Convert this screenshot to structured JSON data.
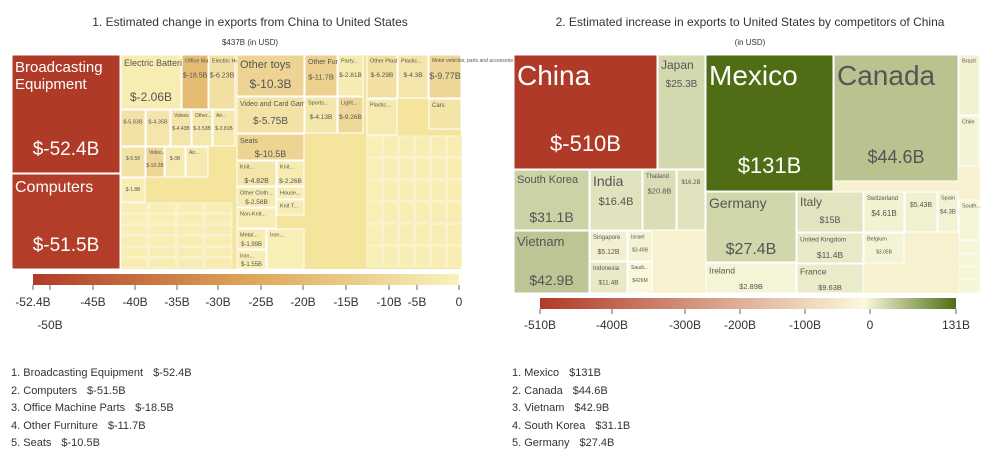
{
  "chart_data": [
    {
      "type": "treemap",
      "title": "1. Estimated change in exports from China to United States",
      "subtitle": "$437B (in USD)",
      "colorscale": {
        "min_color": "#b03a28",
        "mid_color": "#dca557",
        "max_color": "#f9f3bb",
        "ticks": [
          "-52.4B",
          "-50B",
          "-45B",
          "-40B",
          "-35B",
          "-30B",
          "-25B",
          "-20B",
          "-15B",
          "-10B",
          "-5B",
          "0"
        ]
      },
      "items": [
        {
          "label": "Broadcasting Equipment",
          "value": "$-52.4B",
          "v": -52.4
        },
        {
          "label": "Computers",
          "value": "$-51.5B",
          "v": -51.5
        },
        {
          "label": "Electric Batteries",
          "value": "$-2.06B",
          "v": -2.06
        },
        {
          "label": "Office Machine Parts",
          "value": "$-18.5B",
          "v": -18.5
        },
        {
          "label": "Electric Heaters",
          "value": "$-6.23B",
          "v": -6.23
        },
        {
          "label": "Other toys",
          "value": "$-10.3B",
          "v": -10.3
        },
        {
          "label": "Other Furniture",
          "value": "$-11.7B",
          "v": -11.7
        },
        {
          "label": "Video and Card Games",
          "value": "$-5.75B",
          "v": -5.75
        },
        {
          "label": "Seats",
          "value": "$-10.5B",
          "v": -10.5
        },
        {
          "label": "Knit...",
          "value": "$-4.82B",
          "v": -4.82
        },
        {
          "label": "Knit...",
          "value": "$-2.26B",
          "v": -2.26
        },
        {
          "label": "Other Cloth...",
          "value": "$-2.58B",
          "v": -2.58
        },
        {
          "label": "Non-Knit...",
          "value": "",
          "v": -2.2
        },
        {
          "label": "House...",
          "value": "",
          "v": -2.0
        },
        {
          "label": "Knit T...",
          "value": "",
          "v": -1.9
        },
        {
          "label": "Metal...",
          "value": "$-1.99B",
          "v": -1.99
        },
        {
          "label": "Iron...",
          "value": "$-1.55B",
          "v": -1.55
        },
        {
          "label": "Iron...",
          "value": "",
          "v": -1.5
        },
        {
          "label": "Party...",
          "value": "$-2.81B",
          "v": -2.81
        },
        {
          "label": "Sports...",
          "value": "$-4.13B",
          "v": -4.13
        },
        {
          "label": "Light...",
          "value": "$-9.26B",
          "v": -9.26
        },
        {
          "label": "",
          "value": "$-5.83B",
          "v": -5.83
        },
        {
          "label": "",
          "value": "$-4.35B",
          "v": -4.35
        },
        {
          "label": "Valves",
          "value": "$-4.43B",
          "v": -4.43
        },
        {
          "label": "Other...",
          "value": "$-3.53B",
          "v": -3.53
        },
        {
          "label": "Air...",
          "value": "$-3.81B",
          "v": -3.81
        },
        {
          "label": "Video...",
          "value": "$-10.2B",
          "v": -10.2
        },
        {
          "label": "",
          "value": "$-5.58",
          "v": -5.58
        },
        {
          "label": "",
          "value": "$-3B",
          "v": -3.0
        },
        {
          "label": "",
          "value": "$-1.8B",
          "v": -1.8
        },
        {
          "label": "Air...",
          "value": "",
          "v": -3.0
        },
        {
          "label": "Other Plastic...",
          "value": "$-6.29B",
          "v": -6.29
        },
        {
          "label": "Plastic...",
          "value": "$-4.3B",
          "v": -4.3
        },
        {
          "label": "Motor vehicles, parts and accessories (8701...",
          "value": "$-9.77B",
          "v": -9.77
        },
        {
          "label": "Cars",
          "value": "",
          "v": -5.0
        },
        {
          "label": "Plastic...",
          "value": "",
          "v": -3.0
        }
      ],
      "top_list": [
        {
          "rank": "1.",
          "name": "Broadcasting Equipment",
          "value": "$-52.4B"
        },
        {
          "rank": "2.",
          "name": "Computers",
          "value": "$-51.5B"
        },
        {
          "rank": "3.",
          "name": "Office Machine Parts",
          "value": "$-18.5B"
        },
        {
          "rank": "4.",
          "name": "Other Furniture",
          "value": "$-11.7B"
        },
        {
          "rank": "5.",
          "name": "Seats",
          "value": "$-10.5B"
        }
      ]
    },
    {
      "type": "treemap",
      "title": "2. Estimated increase in exports to United States by competitors of China",
      "subtitle": "(in USD)",
      "colorscale": {
        "min_color": "#b03a28",
        "mid_color": "#fbf8dc",
        "max_color": "#4e6d14",
        "ticks": [
          "-510B",
          "-400B",
          "-300B",
          "-200B",
          "-100B",
          "0",
          "131B"
        ]
      },
      "items": [
        {
          "label": "China",
          "value": "$-510B",
          "v": -510
        },
        {
          "label": "Japan",
          "value": "$25.3B",
          "v": 25.3
        },
        {
          "label": "Mexico",
          "value": "$131B",
          "v": 131
        },
        {
          "label": "Canada",
          "value": "$44.6B",
          "v": 44.6
        },
        {
          "label": "Brazil",
          "value": "",
          "v": 5
        },
        {
          "label": "Chile",
          "value": "",
          "v": 3
        },
        {
          "label": "South...",
          "value": "",
          "v": 2
        },
        {
          "label": "South Korea",
          "value": "$31.1B",
          "v": 31.1
        },
        {
          "label": "India",
          "value": "$16.4B",
          "v": 16.4
        },
        {
          "label": "Thailand",
          "value": "$20.8B",
          "v": 20.8
        },
        {
          "label": "",
          "value": "$16.2B",
          "v": 16.2
        },
        {
          "label": "Vietnam",
          "value": "$42.9B",
          "v": 42.9
        },
        {
          "label": "Singapore",
          "value": "$5.12B",
          "v": 5.12
        },
        {
          "label": "Israel",
          "value": "$3.49B",
          "v": 3.49
        },
        {
          "label": "Indonesia",
          "value": "$11.4B",
          "v": 11.4
        },
        {
          "label": "Saudi...",
          "value": "$426M",
          "v": 0.426
        },
        {
          "label": "Germany",
          "value": "$27.4B",
          "v": 27.4
        },
        {
          "label": "Ireland",
          "value": "$2.89B",
          "v": 2.89
        },
        {
          "label": "Italy",
          "value": "$15B",
          "v": 15
        },
        {
          "label": "United Kingdom",
          "value": "$11.4B",
          "v": 11.4
        },
        {
          "label": "France",
          "value": "$9.63B",
          "v": 9.63
        },
        {
          "label": "Switzerland",
          "value": "$4.61B",
          "v": 4.61
        },
        {
          "label": "Spain",
          "value": "$4.3B",
          "v": 4.3
        },
        {
          "label": "",
          "value": "$5.43B",
          "v": 5.43
        },
        {
          "label": "Belgium",
          "value": "$3.05B",
          "v": 3.05
        }
      ],
      "top_list": [
        {
          "rank": "1.",
          "name": "Mexico",
          "value": "$131B"
        },
        {
          "rank": "2.",
          "name": "Canada",
          "value": "$44.6B"
        },
        {
          "rank": "3.",
          "name": "Vietnam",
          "value": "$42.9B"
        },
        {
          "rank": "4.",
          "name": "South Korea",
          "value": "$31.1B"
        },
        {
          "rank": "5.",
          "name": "Germany",
          "value": "$27.4B"
        }
      ]
    }
  ]
}
